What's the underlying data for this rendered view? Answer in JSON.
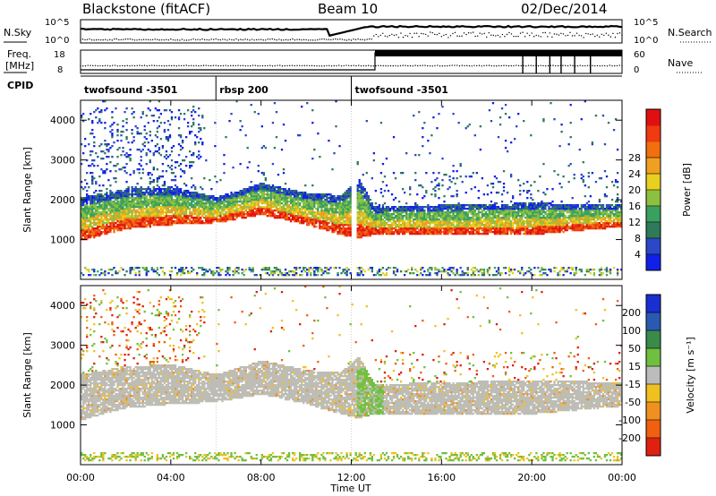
{
  "header": {
    "station": "Blackstone (fitACF)",
    "beam": "Beam 10",
    "date": "02/Dec/2014"
  },
  "noise_panel": {
    "left_label": "N.Sky",
    "right_label": "N.Search",
    "left_ticks": [
      "10^5",
      "10^0"
    ],
    "right_ticks": [
      "10^5",
      "10^0"
    ]
  },
  "freq_panel": {
    "left_label_1": "Freq.",
    "left_label_2": "[MHz]",
    "right_label": "Nave",
    "left_ticks": [
      "18",
      "8"
    ],
    "right_ticks": [
      "60",
      "0"
    ]
  },
  "cpid": {
    "label": "CPID",
    "segments": [
      {
        "name": "twofsound -3501",
        "start_h": 0,
        "end_h": 6
      },
      {
        "name": "rbsp 200",
        "start_h": 6,
        "end_h": 12
      },
      {
        "name": "twofsound -3501",
        "start_h": 12,
        "end_h": 24
      }
    ]
  },
  "chart_data": [
    {
      "type": "heatmap",
      "panel": "power",
      "ylabel": "Slant Range [km]",
      "ylim": [
        0,
        4500
      ],
      "yticks": [
        1000,
        2000,
        3000,
        4000
      ],
      "xlim": [
        0,
        24
      ],
      "xticks": [
        "00:00",
        "04:00",
        "08:00",
        "12:00",
        "16:00",
        "20:00",
        "00:00"
      ],
      "colorbar": {
        "label": "Power [dB]",
        "ticks": [
          4,
          8,
          12,
          16,
          20,
          24,
          28
        ],
        "colors": [
          "#1020e8",
          "#2a48c8",
          "#2f7a5a",
          "#3aa060",
          "#8ec040",
          "#e8d020",
          "#f0a020",
          "#f07010",
          "#f03a10",
          "#e01010"
        ]
      },
      "features": [
        {
          "name": "main echo band (lower edge)",
          "x_h": [
            0,
            2,
            4,
            6,
            8,
            10,
            11.5,
            12.3,
            13,
            16,
            20,
            24
          ],
          "y_km": [
            950,
            1250,
            1350,
            1400,
            1600,
            1350,
            1100,
            1000,
            1100,
            1100,
            1100,
            1300
          ]
        },
        {
          "name": "main echo band (upper edge)",
          "x_h": [
            0,
            2,
            4,
            6,
            8,
            10,
            11.5,
            12.3,
            13,
            16,
            20,
            24
          ],
          "y_km": [
            2050,
            2250,
            2300,
            2050,
            2400,
            2150,
            2100,
            2500,
            1800,
            1850,
            1900,
            1850
          ]
        }
      ]
    },
    {
      "type": "heatmap",
      "panel": "velocity",
      "ylabel": "Slant Range [km]",
      "ylim": [
        0,
        4500
      ],
      "yticks": [
        1000,
        2000,
        3000,
        4000
      ],
      "xlim": [
        0,
        24
      ],
      "xticks": [
        "00:00",
        "04:00",
        "08:00",
        "12:00",
        "16:00",
        "20:00",
        "00:00"
      ],
      "xlabel": "Time UT",
      "colorbar": {
        "label": "Velocity [m s^-1]",
        "ticks": [
          200,
          100,
          50,
          15,
          -15,
          -50,
          -100,
          -200
        ],
        "colors": [
          "#1a2fd0",
          "#2a5ab0",
          "#3a8a4a",
          "#70c040",
          "#bcbcbc",
          "#f0c020",
          "#f09020",
          "#f06010",
          "#e02010"
        ]
      }
    }
  ],
  "colors": {
    "axis": "#000000",
    "ground_scatter": "#bdbdb5"
  }
}
